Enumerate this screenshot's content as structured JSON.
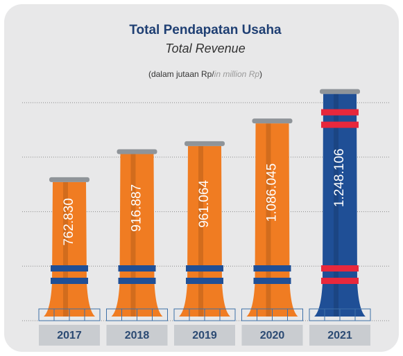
{
  "chart_data": {
    "type": "bar",
    "title": "Total Pendapatan Usaha",
    "subtitle": "Total Revenue",
    "unit_label": [
      "(dalam jutaan Rp/",
      "in million Rp",
      ")"
    ],
    "categories": [
      "2017",
      "2018",
      "2019",
      "2020",
      "2021"
    ],
    "values": [
      762830,
      916887,
      961064,
      1086045,
      1248106
    ],
    "value_labels": [
      "762.830",
      "916.887",
      "961.064",
      "1.086.045",
      "1.248.106"
    ],
    "colors": [
      "#f07c22",
      "#f07c22",
      "#f07c22",
      "#f07c22",
      "#1f4f96"
    ],
    "band_colors": [
      "#1f4f96",
      "#1f4f96",
      "#1f4f96",
      "#1f4f96",
      "#e8283c"
    ],
    "ylim": [
      0,
      1300000
    ],
    "yticks": [
      0,
      300000,
      600000,
      900000,
      1200000
    ],
    "grid": true
  }
}
